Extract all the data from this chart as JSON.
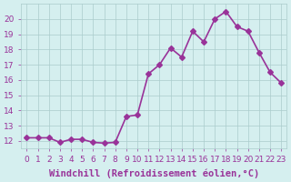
{
  "x": [
    0,
    1,
    2,
    3,
    4,
    5,
    6,
    7,
    8,
    9,
    10,
    11,
    12,
    13,
    14,
    15,
    16,
    17,
    18,
    19,
    20,
    21,
    22,
    23
  ],
  "y": [
    12.2,
    12.2,
    12.2,
    11.9,
    12.1,
    12.1,
    11.9,
    11.85,
    11.9,
    13.6,
    13.7,
    16.4,
    17.0,
    18.1,
    17.5,
    19.2,
    18.5,
    20.0,
    20.5,
    19.5,
    19.2,
    17.8,
    16.5,
    15.8
  ],
  "line_color": "#993399",
  "marker": "D",
  "marker_size": 3,
  "linewidth": 1.2,
  "xlabel": "Windchill (Refroidissement éolien,°C)",
  "xlabel_fontsize": 7.5,
  "ylim": [
    11.5,
    21
  ],
  "xlim": [
    -0.5,
    23.5
  ],
  "yticks": [
    12,
    13,
    14,
    15,
    16,
    17,
    18,
    19,
    20
  ],
  "xticks": [
    0,
    1,
    2,
    3,
    4,
    5,
    6,
    7,
    8,
    9,
    10,
    11,
    12,
    13,
    14,
    15,
    16,
    17,
    18,
    19,
    20,
    21,
    22,
    23
  ],
  "bg_color": "#d5efef",
  "grid_color": "#aacccc",
  "tick_color": "#993399",
  "tick_labelsize": 6.5
}
